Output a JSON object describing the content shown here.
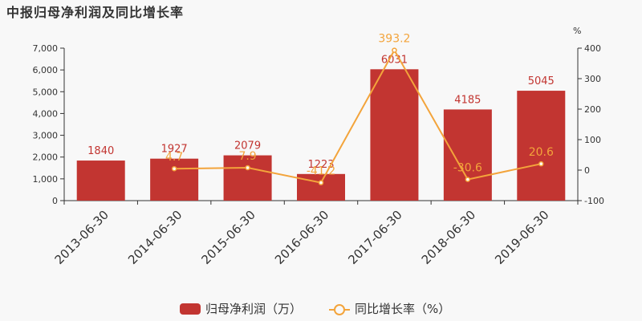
{
  "chart_data": {
    "type": "bar+line",
    "title": "中报归母净利润及同比增长率",
    "categories": [
      "2013-06-30",
      "2014-06-30",
      "2015-06-30",
      "2016-06-30",
      "2017-06-30",
      "2018-06-30",
      "2019-06-30"
    ],
    "series": [
      {
        "name": "归母净利润（万）",
        "type": "bar",
        "axis": "left",
        "values": [
          1840,
          1927,
          2079,
          1223,
          6031,
          4185,
          5045
        ],
        "labels": [
          "1840",
          "1927",
          "2079",
          "1223",
          "6031",
          "4185",
          "5045"
        ]
      },
      {
        "name": "同比增长率（%）",
        "type": "line",
        "axis": "right",
        "values": [
          null,
          4.7,
          7.9,
          -41.2,
          393.2,
          -30.6,
          20.6
        ],
        "labels": [
          "",
          "4.7",
          "7.9",
          "-41.2",
          "393.2",
          "-30.6",
          "20.6"
        ]
      }
    ],
    "y_left": {
      "min": 0,
      "max": 7000,
      "ticks": [
        "0",
        "1,000",
        "2,000",
        "3,000",
        "4,000",
        "5,000",
        "6,000",
        "7,000"
      ]
    },
    "y_right": {
      "min": -100,
      "max": 400,
      "unit": "%",
      "ticks": [
        "-100",
        "0",
        "100",
        "200",
        "300",
        "400"
      ]
    },
    "legend_position": "bottom-center",
    "colors": {
      "bar": "#c23531",
      "line": "#f3a43b",
      "axis": "#333333"
    }
  }
}
